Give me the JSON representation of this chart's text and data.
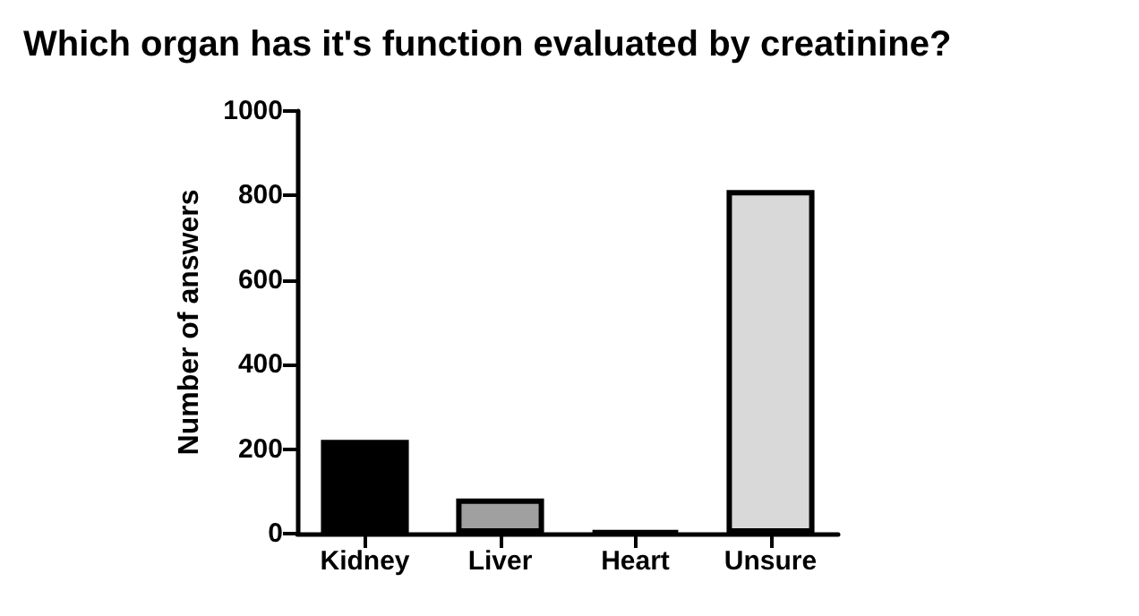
{
  "chart_data": {
    "type": "bar",
    "title": "Which organ has it's function evaluated by creatinine?",
    "ylabel": "Number of answers",
    "categories": [
      "Kidney",
      "Liver",
      "Heart",
      "Unsure"
    ],
    "values": [
      222,
      83,
      5,
      813
    ],
    "colors": [
      "#000000",
      "#a0a0a0",
      "#000000",
      "#d9d9d9"
    ],
    "ylim": [
      0,
      1000
    ],
    "yticks": [
      0,
      200,
      400,
      600,
      800,
      1000
    ],
    "grid": false
  }
}
